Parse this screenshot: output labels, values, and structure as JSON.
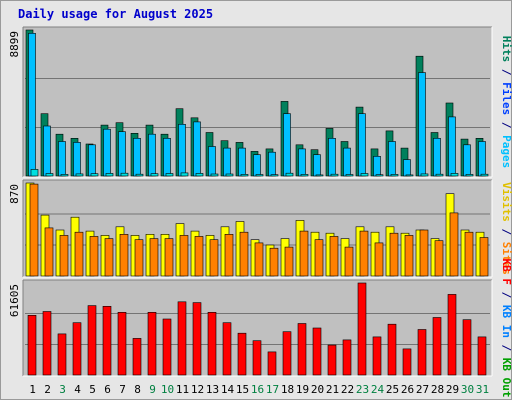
{
  "title": "Daily usage for August 2025",
  "colors": {
    "background": "#e6e6e6",
    "plot_bg": "#c0c0c0",
    "hits": "#00805c",
    "files": "#00c0ff",
    "pages": "#00e0e0",
    "visits": "#ffff00",
    "sites": "#ff8000",
    "kb": "#ff0000",
    "weekend_label": "#008040"
  },
  "chart_data": [
    {
      "type": "bar",
      "panel": "hits-files-pages",
      "y_max_label": "8899",
      "ylim": [
        0,
        8899
      ],
      "categories": [
        "1",
        "2",
        "3",
        "4",
        "5",
        "6",
        "7",
        "8",
        "9",
        "10",
        "11",
        "12",
        "13",
        "14",
        "15",
        "16",
        "17",
        "18",
        "19",
        "20",
        "21",
        "22",
        "23",
        "24",
        "25",
        "26",
        "27",
        "28",
        "29",
        "30",
        "31"
      ],
      "side_labels": [
        {
          "text": "Hits",
          "color": "#00805c"
        },
        {
          "text": "/",
          "color": "#000080"
        },
        {
          "text": "Files",
          "color": "#0040ff"
        },
        {
          "text": "/",
          "color": "#000080"
        },
        {
          "text": "Pages",
          "color": "#00c0ff"
        }
      ],
      "series": [
        {
          "name": "Hits",
          "color": "#00805c",
          "values": [
            8899,
            3800,
            2550,
            2300,
            1950,
            3100,
            3250,
            2600,
            3100,
            2550,
            4100,
            3550,
            2650,
            2150,
            2050,
            1500,
            1650,
            4550,
            1900,
            1600,
            2900,
            2100,
            4200,
            1650,
            2750,
            1700,
            7300,
            2650,
            4450,
            2250,
            2300
          ]
        },
        {
          "name": "Files",
          "color": "#00c0ff",
          "values": [
            8700,
            3050,
            2100,
            2050,
            1900,
            2850,
            2700,
            2300,
            2550,
            2300,
            3150,
            3300,
            1800,
            1700,
            1700,
            1300,
            1450,
            3800,
            1650,
            1300,
            2300,
            1700,
            3800,
            1200,
            2100,
            1000,
            6300,
            2300,
            3600,
            1900,
            2100
          ]
        },
        {
          "name": "Pages",
          "color": "#00e0e0",
          "values": [
            400,
            150,
            100,
            130,
            140,
            160,
            170,
            110,
            140,
            150,
            190,
            160,
            120,
            120,
            100,
            90,
            80,
            170,
            100,
            70,
            110,
            90,
            150,
            80,
            100,
            70,
            130,
            110,
            160,
            100,
            110
          ]
        }
      ]
    },
    {
      "type": "bar",
      "panel": "visits-sites",
      "y_max_label": "870",
      "ylim": [
        0,
        870
      ],
      "categories": [
        "1",
        "2",
        "3",
        "4",
        "5",
        "6",
        "7",
        "8",
        "9",
        "10",
        "11",
        "12",
        "13",
        "14",
        "15",
        "16",
        "17",
        "18",
        "19",
        "20",
        "21",
        "22",
        "23",
        "24",
        "25",
        "26",
        "27",
        "28",
        "29",
        "30",
        "31"
      ],
      "side_labels": [
        {
          "text": "Visits",
          "color": "#e0c000"
        },
        {
          "text": "/",
          "color": "#000080"
        },
        {
          "text": "Sites",
          "color": "#ff8000"
        }
      ],
      "series": [
        {
          "name": "Visits",
          "color": "#ffff00",
          "values": [
            870,
            570,
            430,
            550,
            420,
            380,
            460,
            380,
            390,
            390,
            490,
            420,
            380,
            460,
            510,
            340,
            290,
            350,
            520,
            410,
            400,
            350,
            460,
            410,
            460,
            400,
            430,
            350,
            770,
            430,
            410
          ]
        },
        {
          "name": "Sites",
          "color": "#ff8000",
          "values": [
            860,
            450,
            380,
            410,
            370,
            350,
            390,
            340,
            350,
            350,
            380,
            370,
            340,
            390,
            410,
            310,
            260,
            270,
            420,
            340,
            370,
            270,
            420,
            310,
            400,
            380,
            430,
            330,
            590,
            410,
            360
          ]
        }
      ]
    },
    {
      "type": "bar",
      "panel": "kbytes",
      "y_max_label": "61605",
      "ylim": [
        0,
        61605
      ],
      "categories": [
        "1",
        "2",
        "3",
        "4",
        "5",
        "6",
        "7",
        "8",
        "9",
        "10",
        "11",
        "12",
        "13",
        "14",
        "15",
        "16",
        "17",
        "18",
        "19",
        "20",
        "21",
        "22",
        "23",
        "24",
        "25",
        "26",
        "27",
        "28",
        "29",
        "30",
        "31"
      ],
      "side_labels": [
        {
          "text": "KB F",
          "color": "#ff0000"
        },
        {
          "text": "/",
          "color": "#000080"
        },
        {
          "text": "KB In",
          "color": "#0080ff"
        },
        {
          "text": "/",
          "color": "#000080"
        },
        {
          "text": "KB Out",
          "color": "#00a000"
        }
      ],
      "series": [
        {
          "name": "KB F",
          "color": "#ff0000",
          "values": [
            40000,
            42500,
            27500,
            35000,
            46500,
            46000,
            42000,
            24500,
            42000,
            37500,
            49000,
            48500,
            42000,
            35000,
            28000,
            23000,
            15500,
            29000,
            34500,
            31500,
            20000,
            23500,
            61605,
            25500,
            34000,
            17500,
            30500,
            38500,
            54000,
            37000,
            25500
          ]
        }
      ]
    }
  ],
  "x_labels": [
    {
      "text": "1",
      "weekend": false
    },
    {
      "text": "2",
      "weekend": false
    },
    {
      "text": "3",
      "weekend": true
    },
    {
      "text": "4",
      "weekend": false
    },
    {
      "text": "5",
      "weekend": false
    },
    {
      "text": "6",
      "weekend": false
    },
    {
      "text": "7",
      "weekend": false
    },
    {
      "text": "8",
      "weekend": false
    },
    {
      "text": "9",
      "weekend": true
    },
    {
      "text": "10",
      "weekend": true
    },
    {
      "text": "11",
      "weekend": false
    },
    {
      "text": "12",
      "weekend": false
    },
    {
      "text": "13",
      "weekend": false
    },
    {
      "text": "14",
      "weekend": false
    },
    {
      "text": "15",
      "weekend": false
    },
    {
      "text": "16",
      "weekend": true
    },
    {
      "text": "17",
      "weekend": true
    },
    {
      "text": "18",
      "weekend": false
    },
    {
      "text": "19",
      "weekend": false
    },
    {
      "text": "20",
      "weekend": false
    },
    {
      "text": "21",
      "weekend": false
    },
    {
      "text": "22",
      "weekend": false
    },
    {
      "text": "23",
      "weekend": true
    },
    {
      "text": "24",
      "weekend": true
    },
    {
      "text": "25",
      "weekend": false
    },
    {
      "text": "26",
      "weekend": false
    },
    {
      "text": "27",
      "weekend": false
    },
    {
      "text": "28",
      "weekend": false
    },
    {
      "text": "29",
      "weekend": false
    },
    {
      "text": "30",
      "weekend": true
    },
    {
      "text": "31",
      "weekend": true
    }
  ]
}
